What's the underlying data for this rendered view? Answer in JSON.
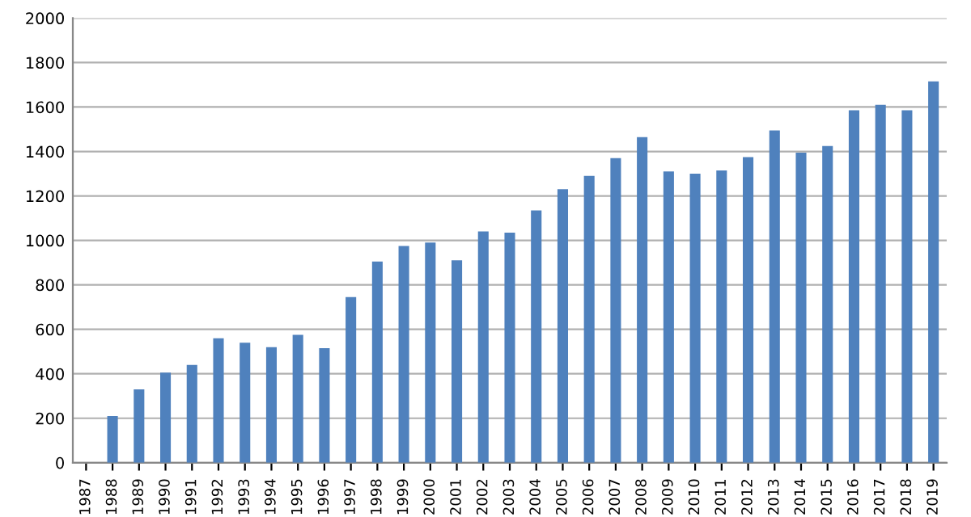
{
  "chart_data": {
    "type": "bar",
    "categories": [
      "1987",
      "1988",
      "1989",
      "1990",
      "1991",
      "1992",
      "1993",
      "1994",
      "1995",
      "1996",
      "1997",
      "1998",
      "1999",
      "2000",
      "2001",
      "2002",
      "2003",
      "2004",
      "2005",
      "2006",
      "2007",
      "2008",
      "2009",
      "2010",
      "2011",
      "2012",
      "2013",
      "2014",
      "2015",
      "2016",
      "2017",
      "2018",
      "2019"
    ],
    "values": [
      null,
      210,
      330,
      405,
      440,
      560,
      540,
      520,
      575,
      515,
      745,
      905,
      975,
      990,
      910,
      1040,
      1035,
      1135,
      1230,
      1290,
      1370,
      1465,
      1310,
      1300,
      1315,
      1375,
      1495,
      1395,
      1425,
      1585,
      1610,
      1585,
      1715
    ],
    "color": "#4f81bd",
    "ylim": [
      0,
      2000
    ],
    "yticks": [
      0,
      200,
      400,
      600,
      800,
      1000,
      1200,
      1400,
      1600,
      1800,
      2000
    ],
    "grid": "y",
    "legend": false
  }
}
